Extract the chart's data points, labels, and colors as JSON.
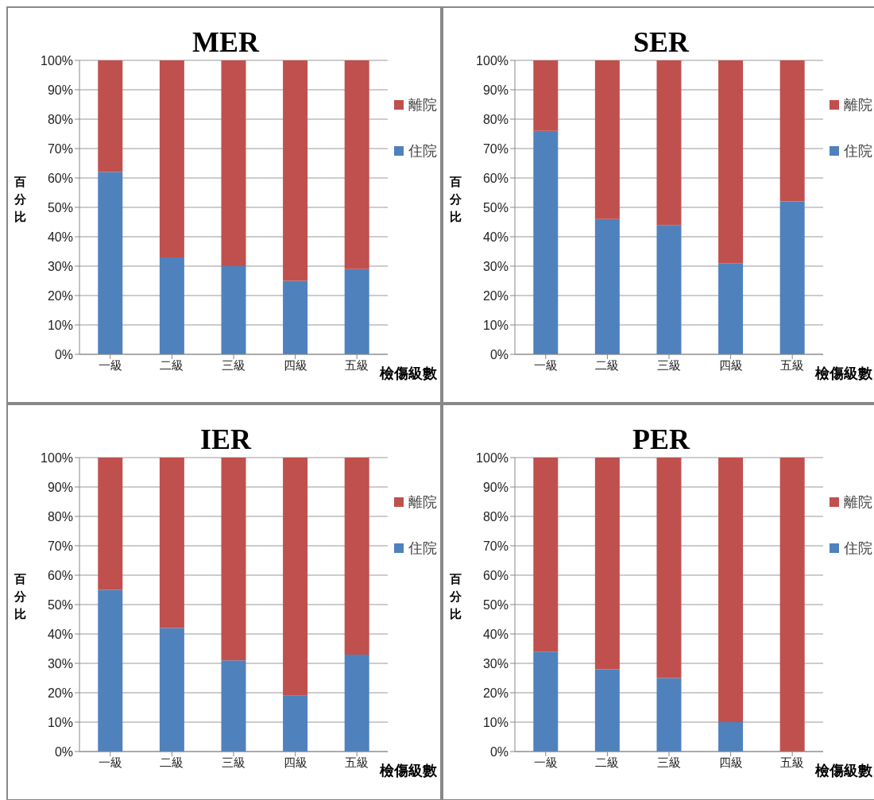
{
  "chart_data": [
    {
      "type": "bar",
      "title": "MER",
      "xlabel": "檢傷級數",
      "ylabel": "百分比",
      "categories": [
        "一級",
        "二級",
        "三級",
        "四級",
        "五級"
      ],
      "stacked": true,
      "series": [
        {
          "name": "住院",
          "color": "#4f81bd",
          "values": [
            62,
            33,
            30,
            25,
            29
          ]
        },
        {
          "name": "離院",
          "color": "#c0504d",
          "values": [
            38,
            67,
            70,
            75,
            71
          ]
        }
      ],
      "ylim": [
        0,
        100
      ],
      "yticks": [
        {
          "value": 0,
          "label": "0%"
        },
        {
          "value": 10,
          "label": "10%"
        },
        {
          "value": 20,
          "label": "20%"
        },
        {
          "value": 30,
          "label": "30%"
        },
        {
          "value": 40,
          "label": "40%"
        },
        {
          "value": 50,
          "label": "50%"
        },
        {
          "value": 60,
          "label": "60%"
        },
        {
          "value": 70,
          "label": "70%"
        },
        {
          "value": 80,
          "label": "80%"
        },
        {
          "value": 90,
          "label": "90%"
        },
        {
          "value": 100,
          "label": "100%"
        }
      ],
      "grid": "y",
      "legend": "right"
    },
    {
      "type": "bar",
      "title": "SER",
      "xlabel": "檢傷級數",
      "ylabel": "百分比",
      "categories": [
        "一級",
        "二級",
        "三級",
        "四級",
        "五級"
      ],
      "stacked": true,
      "series": [
        {
          "name": "住院",
          "color": "#4f81bd",
          "values": [
            76,
            46,
            44,
            31,
            52
          ]
        },
        {
          "name": "離院",
          "color": "#c0504d",
          "values": [
            24,
            54,
            56,
            69,
            48
          ]
        }
      ],
      "ylim": [
        0,
        100
      ],
      "yticks": [
        {
          "value": 0,
          "label": "0%"
        },
        {
          "value": 10,
          "label": "10%"
        },
        {
          "value": 20,
          "label": "20%"
        },
        {
          "value": 30,
          "label": "30%"
        },
        {
          "value": 40,
          "label": "40%"
        },
        {
          "value": 50,
          "label": "50%"
        },
        {
          "value": 60,
          "label": "60%"
        },
        {
          "value": 70,
          "label": "70%"
        },
        {
          "value": 80,
          "label": "80%"
        },
        {
          "value": 90,
          "label": "90%"
        },
        {
          "value": 100,
          "label": "100%"
        }
      ],
      "grid": "y",
      "legend": "right"
    },
    {
      "type": "bar",
      "title": "IER",
      "xlabel": "檢傷級數",
      "ylabel": "百分比",
      "categories": [
        "一級",
        "二級",
        "三級",
        "四級",
        "五級"
      ],
      "stacked": true,
      "series": [
        {
          "name": "住院",
          "color": "#4f81bd",
          "values": [
            55,
            42,
            31,
            19,
            33
          ]
        },
        {
          "name": "離院",
          "color": "#c0504d",
          "values": [
            45,
            58,
            69,
            81,
            67
          ]
        }
      ],
      "ylim": [
        0,
        100
      ],
      "yticks": [
        {
          "value": 0,
          "label": "0%"
        },
        {
          "value": 10,
          "label": "10%"
        },
        {
          "value": 20,
          "label": "20%"
        },
        {
          "value": 30,
          "label": "30%"
        },
        {
          "value": 40,
          "label": "40%"
        },
        {
          "value": 50,
          "label": "50%"
        },
        {
          "value": 60,
          "label": "60%"
        },
        {
          "value": 70,
          "label": "70%"
        },
        {
          "value": 80,
          "label": "80%"
        },
        {
          "value": 90,
          "label": "90%"
        },
        {
          "value": 100,
          "label": "100%"
        }
      ],
      "grid": "y",
      "legend": "right"
    },
    {
      "type": "bar",
      "title": "PER",
      "xlabel": "檢傷級數",
      "ylabel": "百分比",
      "categories": [
        "一級",
        "二級",
        "三級",
        "四級",
        "五級"
      ],
      "stacked": true,
      "series": [
        {
          "name": "住院",
          "color": "#4f81bd",
          "values": [
            34,
            28,
            25,
            10,
            0
          ]
        },
        {
          "name": "離院",
          "color": "#c0504d",
          "values": [
            66,
            72,
            75,
            90,
            100
          ]
        }
      ],
      "ylim": [
        0,
        100
      ],
      "yticks": [
        {
          "value": 0,
          "label": "0%"
        },
        {
          "value": 10,
          "label": "10%"
        },
        {
          "value": 20,
          "label": "20%"
        },
        {
          "value": 30,
          "label": "30%"
        },
        {
          "value": 40,
          "label": "40%"
        },
        {
          "value": 50,
          "label": "50%"
        },
        {
          "value": 60,
          "label": "60%"
        },
        {
          "value": 70,
          "label": "70%"
        },
        {
          "value": 80,
          "label": "80%"
        },
        {
          "value": 90,
          "label": "90%"
        },
        {
          "value": 100,
          "label": "100%"
        }
      ],
      "grid": "y",
      "legend": "right"
    }
  ]
}
